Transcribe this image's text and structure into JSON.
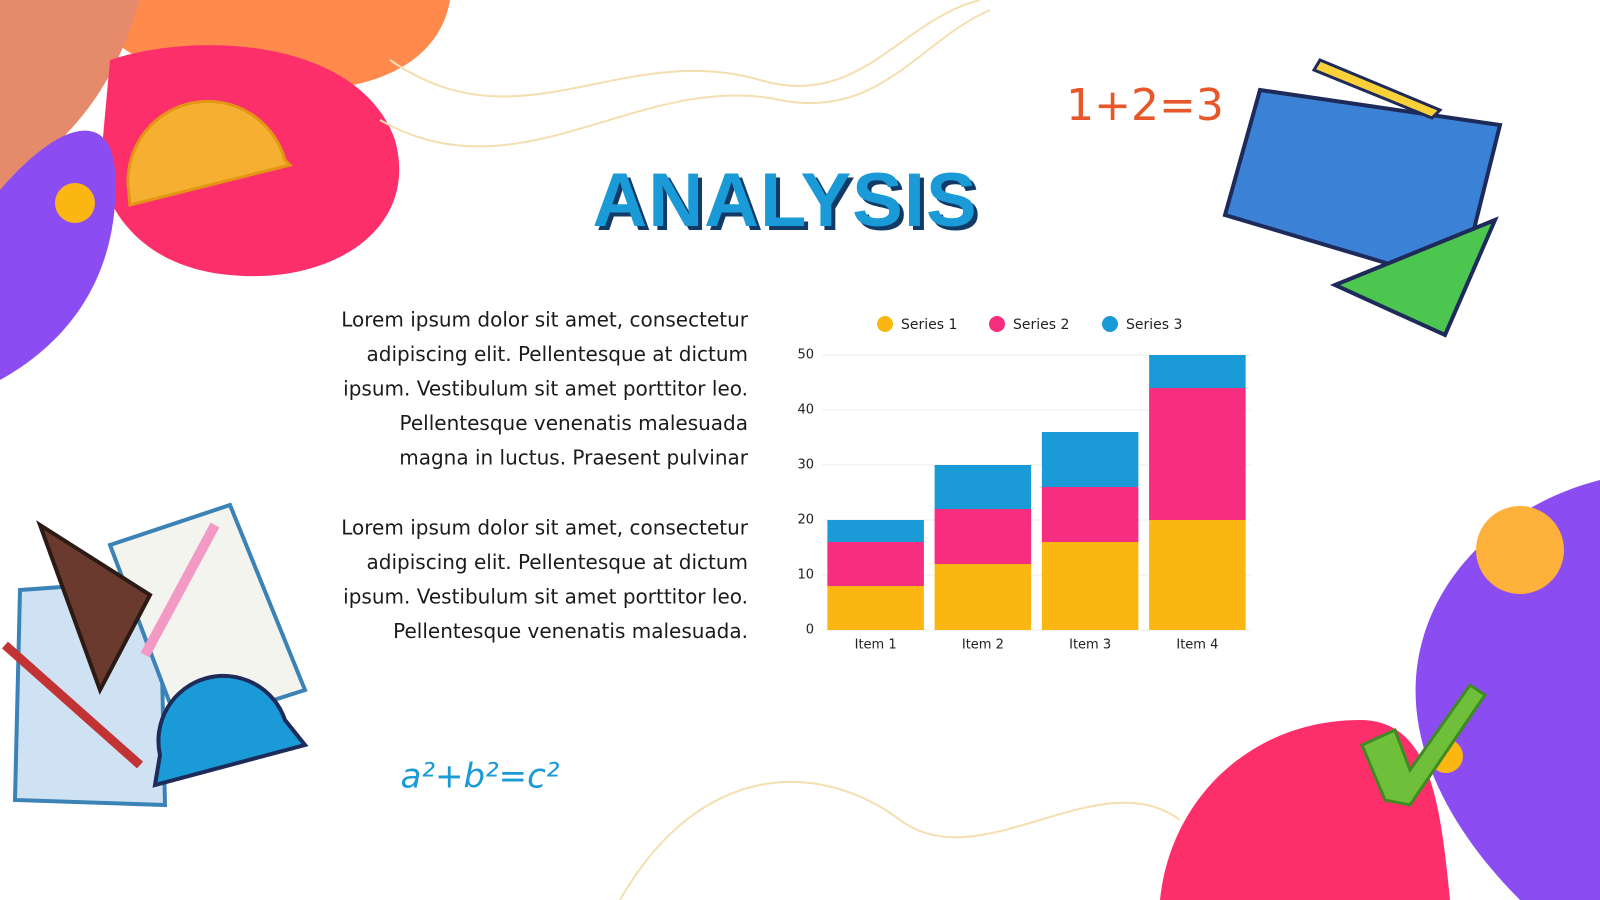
{
  "title": "ANALYSIS",
  "paragraphs": [
    [
      "Lorem ipsum dolor sit amet, consectetur",
      "adipiscing elit. Pellentesque at dictum",
      "ipsum. Vestibulum sit amet porttitor leo.",
      "Pellentesque venenatis malesuada",
      "magna in luctus. Praesent pulvinar"
    ],
    [
      "Lorem ipsum dolor sit amet, consectetur",
      "adipiscing elit. Pellentesque at dictum",
      "ipsum. Vestibulum sit amet porttitor leo.",
      "Pellentesque venenatis malesuada."
    ]
  ],
  "formulas": [
    "1+2=3",
    "a²+b²=c²"
  ],
  "chart_data": {
    "type": "bar",
    "stacked": true,
    "categories": [
      "Item 1",
      "Item 2",
      "Item 3",
      "Item 4"
    ],
    "series": [
      {
        "name": "Series 1",
        "color": "#fbb612",
        "values": [
          8,
          12,
          16,
          20
        ]
      },
      {
        "name": "Series 2",
        "color": "#f72d7f",
        "values": [
          8,
          10,
          10,
          24
        ]
      },
      {
        "name": "Series 3",
        "color": "#1a9ad6",
        "values": [
          4,
          8,
          10,
          6
        ]
      }
    ],
    "ylim": [
      0,
      50
    ],
    "yticks": [
      0,
      10,
      20,
      30,
      40,
      50
    ],
    "grid": true,
    "legend": "top"
  }
}
